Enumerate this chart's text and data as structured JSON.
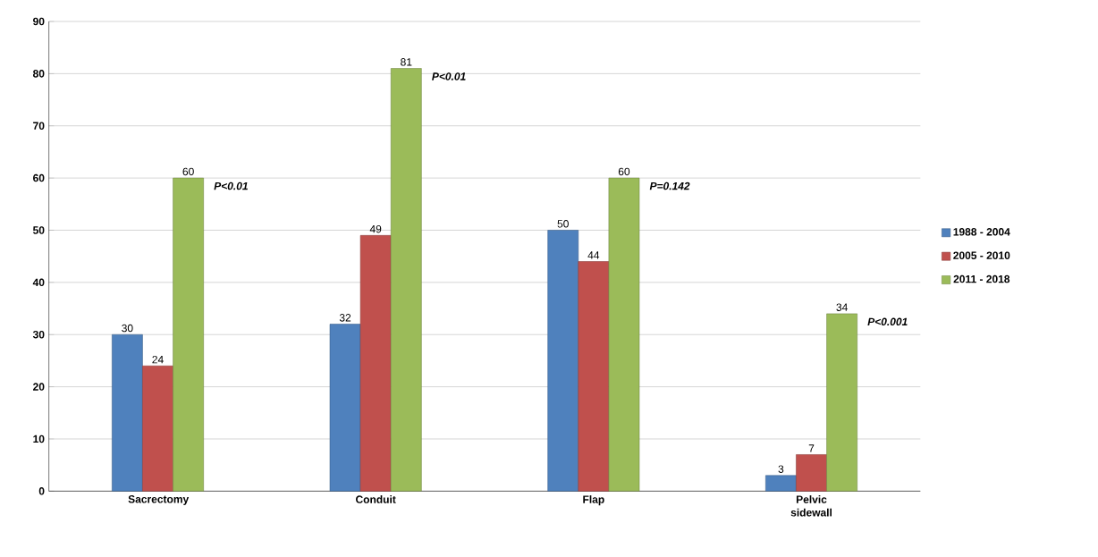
{
  "chart_data": {
    "type": "bar",
    "categories": [
      "Sacrectomy",
      "Conduit",
      "Flap",
      "Pelvic sidewall"
    ],
    "series": [
      {
        "name": "1988 - 2004",
        "color": "#4f81bd",
        "values": [
          30,
          32,
          50,
          3
        ]
      },
      {
        "name": "2005 - 2010",
        "color": "#c0504d",
        "values": [
          24,
          49,
          44,
          7
        ]
      },
      {
        "name": "2011 - 2018",
        "color": "#9bbb59",
        "values": [
          60,
          81,
          60,
          34
        ]
      }
    ],
    "ylim": [
      0,
      90
    ],
    "yticks": [
      0,
      10,
      20,
      30,
      40,
      50,
      60,
      70,
      80,
      90
    ],
    "grid": "y",
    "legend": "right",
    "data_labels": true,
    "annotations": [
      "P<0.01",
      "P<0.01",
      "P=0.142",
      "P<0.001"
    ]
  }
}
